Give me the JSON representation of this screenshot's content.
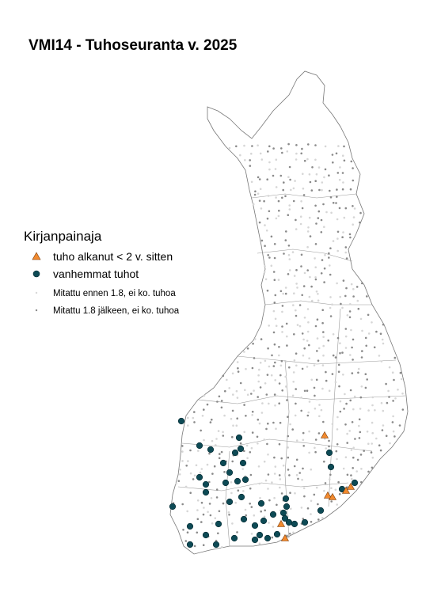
{
  "title": "VMI14 - Tuhoseuranta v. 2025",
  "legend": {
    "title": "Kirjanpainaja",
    "items": [
      "tuho alkanut < 2 v. sitten",
      "vanhemmat tuhot",
      "Mitattu ennen 1.8, ei ko. tuhoa",
      "Mitattu 1.8 jälkeen, ei ko. tuhoa"
    ]
  }
}
